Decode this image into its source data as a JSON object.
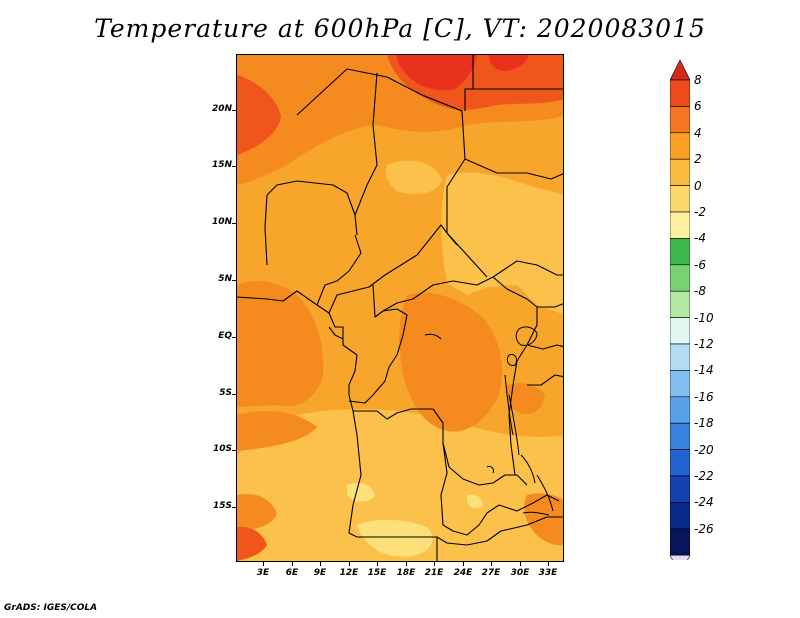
{
  "title": "Temperature at 600hPa [C], VT: 2020083015",
  "credit": "GrADS: IGES/COLA",
  "map": {
    "variable": "Temperature at 600hPa",
    "units": "C",
    "valid_time": "2020083015",
    "lat_labels": [
      "20N",
      "15N",
      "10N",
      "5N",
      "EQ",
      "5S",
      "10S",
      "15S"
    ],
    "lon_labels": [
      "3E",
      "6E",
      "9E",
      "12E",
      "15E",
      "18E",
      "21E",
      "24E",
      "27E",
      "30E",
      "33E"
    ],
    "colors": {
      "band_8_plus": "#e8321e",
      "band_6_8": "#f0561c",
      "band_4_6": "#f58a1e",
      "band_2_4": "#f8a52c",
      "band_0_2": "#fbc14a",
      "band_m2_0": "#fde07a"
    }
  },
  "colorbar": {
    "labels": [
      "8",
      "6",
      "4",
      "2",
      "0",
      "-2",
      "-4",
      "-6",
      "-8",
      "-10",
      "-12",
      "-14",
      "-16",
      "-18",
      "-20",
      "-22",
      "-24",
      "-26"
    ],
    "colors": [
      "#d8281a",
      "#ee4a1c",
      "#f47620",
      "#f8a023",
      "#fbbd3f",
      "#fcd86a",
      "#fdf0a0",
      "#3cb84a",
      "#78d470",
      "#b4e9a4",
      "#e2f6f2",
      "#b4dcf4",
      "#82bff0",
      "#58a2ea",
      "#3a82e0",
      "#2262d2",
      "#1440b0",
      "#0a2a88",
      "#08145c",
      "#e0ddf4"
    ]
  }
}
